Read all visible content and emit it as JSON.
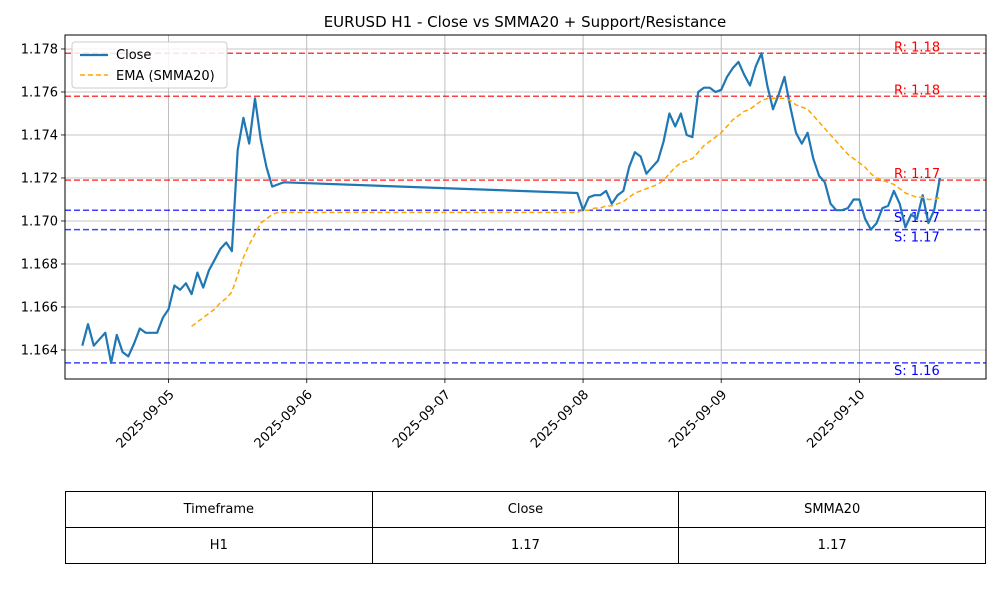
{
  "chart_data": {
    "type": "line",
    "title": "EURUSD H1 - Close vs SMMA20 + Support/Resistance",
    "xlabel": "",
    "ylabel": "",
    "ylim": [
      1.16265,
      1.17865
    ],
    "xlim": [
      "2025-09-04 06:00",
      "2025-09-10 22:00"
    ],
    "x_ticks": [
      "2025-09-05",
      "2025-09-06",
      "2025-09-07",
      "2025-09-08",
      "2025-09-09",
      "2025-09-10"
    ],
    "y_ticks": [
      "1.164",
      "1.166",
      "1.168",
      "1.170",
      "1.172",
      "1.174",
      "1.176",
      "1.178"
    ],
    "grid": true,
    "legend_position": "top-left",
    "series": [
      {
        "name": "Close",
        "color": "#1f77b4",
        "style": "solid",
        "points": [
          [
            "2025-09-04 09:00",
            1.1642
          ],
          [
            "2025-09-04 10:00",
            1.1652
          ],
          [
            "2025-09-04 11:00",
            1.1642
          ],
          [
            "2025-09-04 12:00",
            1.1645
          ],
          [
            "2025-09-04 13:00",
            1.1648
          ],
          [
            "2025-09-04 14:00",
            1.1634
          ],
          [
            "2025-09-04 15:00",
            1.1647
          ],
          [
            "2025-09-04 16:00",
            1.1639
          ],
          [
            "2025-09-04 17:00",
            1.1637
          ],
          [
            "2025-09-04 18:00",
            1.1643
          ],
          [
            "2025-09-04 19:00",
            1.165
          ],
          [
            "2025-09-04 20:00",
            1.1648
          ],
          [
            "2025-09-04 21:00",
            1.1648
          ],
          [
            "2025-09-04 22:00",
            1.1648
          ],
          [
            "2025-09-04 23:00",
            1.1655
          ],
          [
            "2025-09-05 00:00",
            1.1659
          ],
          [
            "2025-09-05 01:00",
            1.167
          ],
          [
            "2025-09-05 02:00",
            1.1668
          ],
          [
            "2025-09-05 03:00",
            1.1671
          ],
          [
            "2025-09-05 04:00",
            1.1666
          ],
          [
            "2025-09-05 05:00",
            1.1676
          ],
          [
            "2025-09-05 06:00",
            1.1669
          ],
          [
            "2025-09-05 07:00",
            1.1677
          ],
          [
            "2025-09-05 08:00",
            1.1682
          ],
          [
            "2025-09-05 09:00",
            1.1687
          ],
          [
            "2025-09-05 10:00",
            1.169
          ],
          [
            "2025-09-05 11:00",
            1.1686
          ],
          [
            "2025-09-05 12:00",
            1.1733
          ],
          [
            "2025-09-05 13:00",
            1.1748
          ],
          [
            "2025-09-05 14:00",
            1.1736
          ],
          [
            "2025-09-05 15:00",
            1.1757
          ],
          [
            "2025-09-05 16:00",
            1.1738
          ],
          [
            "2025-09-05 17:00",
            1.1725
          ],
          [
            "2025-09-05 18:00",
            1.1716
          ],
          [
            "2025-09-05 19:00",
            1.1717
          ],
          [
            "2025-09-05 20:00",
            1.1718
          ],
          [
            "2025-09-07 23:00",
            1.1713
          ],
          [
            "2025-09-08 00:00",
            1.1705
          ],
          [
            "2025-09-08 01:00",
            1.1711
          ],
          [
            "2025-09-08 02:00",
            1.1712
          ],
          [
            "2025-09-08 03:00",
            1.1712
          ],
          [
            "2025-09-08 04:00",
            1.1714
          ],
          [
            "2025-09-08 05:00",
            1.1708
          ],
          [
            "2025-09-08 06:00",
            1.1712
          ],
          [
            "2025-09-08 07:00",
            1.1714
          ],
          [
            "2025-09-08 08:00",
            1.1725
          ],
          [
            "2025-09-08 09:00",
            1.1732
          ],
          [
            "2025-09-08 10:00",
            1.173
          ],
          [
            "2025-09-08 11:00",
            1.1722
          ],
          [
            "2025-09-08 12:00",
            1.1725
          ],
          [
            "2025-09-08 13:00",
            1.1728
          ],
          [
            "2025-09-08 14:00",
            1.1737
          ],
          [
            "2025-09-08 15:00",
            1.175
          ],
          [
            "2025-09-08 16:00",
            1.1744
          ],
          [
            "2025-09-08 17:00",
            1.175
          ],
          [
            "2025-09-08 18:00",
            1.174
          ],
          [
            "2025-09-08 19:00",
            1.1739
          ],
          [
            "2025-09-08 20:00",
            1.176
          ],
          [
            "2025-09-08 21:00",
            1.1762
          ],
          [
            "2025-09-08 22:00",
            1.1762
          ],
          [
            "2025-09-08 23:00",
            1.176
          ],
          [
            "2025-09-09 00:00",
            1.1761
          ],
          [
            "2025-09-09 01:00",
            1.1767
          ],
          [
            "2025-09-09 02:00",
            1.1771
          ],
          [
            "2025-09-09 03:00",
            1.1774
          ],
          [
            "2025-09-09 04:00",
            1.1768
          ],
          [
            "2025-09-09 05:00",
            1.1763
          ],
          [
            "2025-09-09 06:00",
            1.1772
          ],
          [
            "2025-09-09 07:00",
            1.1778
          ],
          [
            "2025-09-09 08:00",
            1.1763
          ],
          [
            "2025-09-09 09:00",
            1.1752
          ],
          [
            "2025-09-09 10:00",
            1.1759
          ],
          [
            "2025-09-09 11:00",
            1.1767
          ],
          [
            "2025-09-09 12:00",
            1.1753
          ],
          [
            "2025-09-09 13:00",
            1.1741
          ],
          [
            "2025-09-09 14:00",
            1.1736
          ],
          [
            "2025-09-09 15:00",
            1.1741
          ],
          [
            "2025-09-09 16:00",
            1.1729
          ],
          [
            "2025-09-09 17:00",
            1.1721
          ],
          [
            "2025-09-09 18:00",
            1.1718
          ],
          [
            "2025-09-09 19:00",
            1.1708
          ],
          [
            "2025-09-09 20:00",
            1.1705
          ],
          [
            "2025-09-09 21:00",
            1.1705
          ],
          [
            "2025-09-09 22:00",
            1.1706
          ],
          [
            "2025-09-09 23:00",
            1.171
          ],
          [
            "2025-09-10 00:00",
            1.171
          ],
          [
            "2025-09-10 01:00",
            1.1701
          ],
          [
            "2025-09-10 02:00",
            1.1696
          ],
          [
            "2025-09-10 03:00",
            1.1699
          ],
          [
            "2025-09-10 04:00",
            1.1706
          ],
          [
            "2025-09-10 05:00",
            1.1707
          ],
          [
            "2025-09-10 06:00",
            1.1714
          ],
          [
            "2025-09-10 07:00",
            1.1708
          ],
          [
            "2025-09-10 08:00",
            1.1697
          ],
          [
            "2025-09-10 09:00",
            1.1703
          ],
          [
            "2025-09-10 10:00",
            1.1701
          ],
          [
            "2025-09-10 11:00",
            1.1712
          ],
          [
            "2025-09-10 12:00",
            1.1699
          ],
          [
            "2025-09-10 13:00",
            1.1705
          ],
          [
            "2025-09-10 14:00",
            1.172
          ]
        ]
      },
      {
        "name": "EMA (SMMA20)",
        "color": "#ffa500",
        "style": "dashed",
        "points": [
          [
            "2025-09-05 04:00",
            1.1651
          ],
          [
            "2025-09-05 05:00",
            1.1653
          ],
          [
            "2025-09-05 06:00",
            1.1655
          ],
          [
            "2025-09-05 07:00",
            1.1657
          ],
          [
            "2025-09-05 08:00",
            1.1659
          ],
          [
            "2025-09-05 09:00",
            1.1662
          ],
          [
            "2025-09-05 10:00",
            1.1664
          ],
          [
            "2025-09-05 11:00",
            1.1667
          ],
          [
            "2025-09-05 12:00",
            1.1675
          ],
          [
            "2025-09-05 13:00",
            1.1683
          ],
          [
            "2025-09-05 14:00",
            1.1689
          ],
          [
            "2025-09-05 15:00",
            1.1694
          ],
          [
            "2025-09-05 16:00",
            1.1699
          ],
          [
            "2025-09-05 17:00",
            1.1701
          ],
          [
            "2025-09-05 18:00",
            1.1703
          ],
          [
            "2025-09-05 19:00",
            1.1704
          ],
          [
            "2025-09-05 20:00",
            1.1704
          ],
          [
            "2025-09-07 23:00",
            1.1704
          ],
          [
            "2025-09-08 00:00",
            1.1705
          ],
          [
            "2025-09-08 01:00",
            1.1705
          ],
          [
            "2025-09-08 02:00",
            1.1706
          ],
          [
            "2025-09-08 03:00",
            1.1706
          ],
          [
            "2025-09-08 04:00",
            1.1707
          ],
          [
            "2025-09-08 05:00",
            1.1707
          ],
          [
            "2025-09-08 06:00",
            1.1708
          ],
          [
            "2025-09-08 07:00",
            1.1709
          ],
          [
            "2025-09-08 08:00",
            1.1711
          ],
          [
            "2025-09-08 09:00",
            1.1713
          ],
          [
            "2025-09-08 10:00",
            1.1714
          ],
          [
            "2025-09-08 11:00",
            1.1715
          ],
          [
            "2025-09-08 12:00",
            1.1716
          ],
          [
            "2025-09-08 13:00",
            1.1717
          ],
          [
            "2025-09-08 14:00",
            1.1719
          ],
          [
            "2025-09-08 15:00",
            1.1722
          ],
          [
            "2025-09-08 16:00",
            1.1725
          ],
          [
            "2025-09-08 17:00",
            1.1727
          ],
          [
            "2025-09-08 18:00",
            1.1728
          ],
          [
            "2025-09-08 19:00",
            1.1729
          ],
          [
            "2025-09-08 20:00",
            1.1732
          ],
          [
            "2025-09-08 21:00",
            1.1735
          ],
          [
            "2025-09-08 22:00",
            1.1737
          ],
          [
            "2025-09-08 23:00",
            1.1739
          ],
          [
            "2025-09-09 00:00",
            1.1741
          ],
          [
            "2025-09-09 01:00",
            1.1744
          ],
          [
            "2025-09-09 02:00",
            1.1747
          ],
          [
            "2025-09-09 03:00",
            1.1749
          ],
          [
            "2025-09-09 04:00",
            1.1751
          ],
          [
            "2025-09-09 05:00",
            1.1752
          ],
          [
            "2025-09-09 06:00",
            1.1754
          ],
          [
            "2025-09-09 07:00",
            1.1756
          ],
          [
            "2025-09-09 08:00",
            1.1757
          ],
          [
            "2025-09-09 09:00",
            1.1757
          ],
          [
            "2025-09-09 10:00",
            1.1757
          ],
          [
            "2025-09-09 11:00",
            1.1757
          ],
          [
            "2025-09-09 12:00",
            1.1756
          ],
          [
            "2025-09-09 13:00",
            1.1754
          ],
          [
            "2025-09-09 14:00",
            1.1753
          ],
          [
            "2025-09-09 15:00",
            1.1752
          ],
          [
            "2025-09-09 16:00",
            1.1749
          ],
          [
            "2025-09-09 17:00",
            1.1746
          ],
          [
            "2025-09-09 18:00",
            1.1743
          ],
          [
            "2025-09-09 19:00",
            1.174
          ],
          [
            "2025-09-09 20:00",
            1.1737
          ],
          [
            "2025-09-09 21:00",
            1.1734
          ],
          [
            "2025-09-09 22:00",
            1.1731
          ],
          [
            "2025-09-09 23:00",
            1.1729
          ],
          [
            "2025-09-10 00:00",
            1.1727
          ],
          [
            "2025-09-10 01:00",
            1.1725
          ],
          [
            "2025-09-10 02:00",
            1.1722
          ],
          [
            "2025-09-10 03:00",
            1.172
          ],
          [
            "2025-09-10 04:00",
            1.1719
          ],
          [
            "2025-09-10 05:00",
            1.1718
          ],
          [
            "2025-09-10 06:00",
            1.1717
          ],
          [
            "2025-09-10 07:00",
            1.1715
          ],
          [
            "2025-09-10 08:00",
            1.1713
          ],
          [
            "2025-09-10 09:00",
            1.1712
          ],
          [
            "2025-09-10 10:00",
            1.1711
          ],
          [
            "2025-09-10 11:00",
            1.1711
          ],
          [
            "2025-09-10 12:00",
            1.171
          ],
          [
            "2025-09-10 13:00",
            1.171
          ],
          [
            "2025-09-10 14:00",
            1.1711
          ]
        ]
      }
    ],
    "levels": [
      {
        "kind": "resistance",
        "value": 1.1778,
        "label": "R: 1.18",
        "color": "#ff0000"
      },
      {
        "kind": "resistance",
        "value": 1.1758,
        "label": "R: 1.18",
        "color": "#ff0000"
      },
      {
        "kind": "resistance",
        "value": 1.1719,
        "label": "R: 1.17",
        "color": "#ff0000"
      },
      {
        "kind": "support",
        "value": 1.1705,
        "label": "S: 1.17",
        "color": "#0000ff"
      },
      {
        "kind": "support",
        "value": 1.1696,
        "label": "S: 1.17",
        "color": "#0000ff"
      },
      {
        "kind": "support",
        "value": 1.1634,
        "label": "S: 1.16",
        "color": "#0000ff"
      }
    ]
  },
  "table": {
    "headers": [
      "Timeframe",
      "Close",
      "SMMA20"
    ],
    "rows": [
      [
        "H1",
        "1.17",
        "1.17"
      ]
    ]
  }
}
